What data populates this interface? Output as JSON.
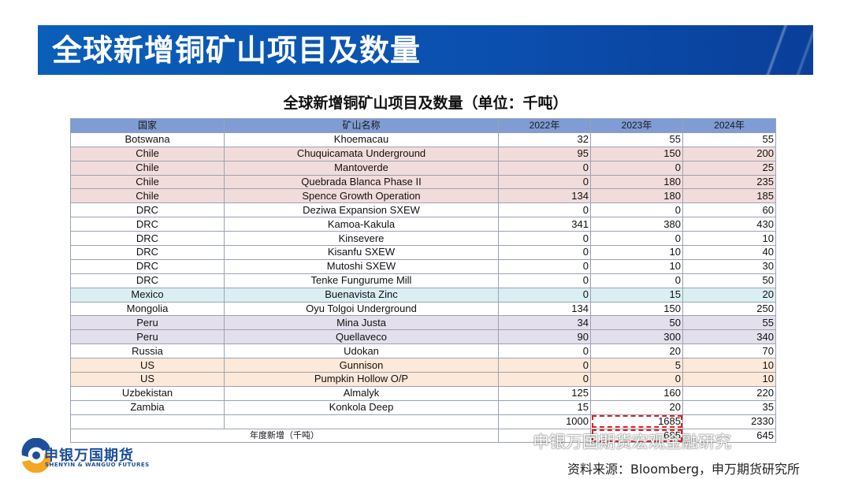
{
  "banner": {
    "title": "全球新增铜矿山项目及数量"
  },
  "table_title": "全球新增铜矿山项目及数量（单位：千吨）",
  "table": {
    "headers": [
      "国家",
      "矿山名称",
      "2022年",
      "2023年",
      "2024年"
    ],
    "rows": [
      {
        "country": "Botswana",
        "mine": "Khoemacau",
        "y2022": "32",
        "y2023": "55",
        "y2024": "55",
        "hl": ""
      },
      {
        "country": "Chile",
        "mine": "Chuquicamata Underground",
        "y2022": "95",
        "y2023": "150",
        "y2024": "200",
        "hl": "red"
      },
      {
        "country": "Chile",
        "mine": "Mantoverde",
        "y2022": "0",
        "y2023": "0",
        "y2024": "25",
        "hl": "red"
      },
      {
        "country": "Chile",
        "mine": "Quebrada Blanca Phase II",
        "y2022": "0",
        "y2023": "180",
        "y2024": "235",
        "hl": "red"
      },
      {
        "country": "Chile",
        "mine": "Spence Growth Operation",
        "y2022": "134",
        "y2023": "180",
        "y2024": "185",
        "hl": "red"
      },
      {
        "country": "DRC",
        "mine": "Deziwa Expansion SXEW",
        "y2022": "0",
        "y2023": "0",
        "y2024": "60",
        "hl": ""
      },
      {
        "country": "DRC",
        "mine": "Kamoa-Kakula",
        "y2022": "341",
        "y2023": "380",
        "y2024": "430",
        "hl": ""
      },
      {
        "country": "DRC",
        "mine": "Kinsevere",
        "y2022": "0",
        "y2023": "0",
        "y2024": "10",
        "hl": ""
      },
      {
        "country": "DRC",
        "mine": "Kisanfu SXEW",
        "y2022": "0",
        "y2023": "10",
        "y2024": "40",
        "hl": ""
      },
      {
        "country": "DRC",
        "mine": "Mutoshi SXEW",
        "y2022": "0",
        "y2023": "10",
        "y2024": "30",
        "hl": ""
      },
      {
        "country": "DRC",
        "mine": "Tenke Fungurume Mill",
        "y2022": "0",
        "y2023": "0",
        "y2024": "50",
        "hl": ""
      },
      {
        "country": "Mexico",
        "mine": "Buenavista Zinc",
        "y2022": "0",
        "y2023": "15",
        "y2024": "20",
        "hl": "blue"
      },
      {
        "country": "Mongolia",
        "mine": "Oyu Tolgoi Underground",
        "y2022": "134",
        "y2023": "150",
        "y2024": "250",
        "hl": ""
      },
      {
        "country": "Peru",
        "mine": "Mina Justa",
        "y2022": "34",
        "y2023": "50",
        "y2024": "55",
        "hl": "purple"
      },
      {
        "country": "Peru",
        "mine": "Quellaveco",
        "y2022": "90",
        "y2023": "300",
        "y2024": "340",
        "hl": "purple"
      },
      {
        "country": "Russia",
        "mine": "Udokan",
        "y2022": "0",
        "y2023": "20",
        "y2024": "70",
        "hl": ""
      },
      {
        "country": "US",
        "mine": "Gunnison",
        "y2022": "0",
        "y2023": "5",
        "y2024": "10",
        "hl": "orange"
      },
      {
        "country": "US",
        "mine": "Pumpkin Hollow O/P",
        "y2022": "0",
        "y2023": "0",
        "y2024": "10",
        "hl": "orange"
      },
      {
        "country": "Uzbekistan",
        "mine": "Almalyk",
        "y2022": "125",
        "y2023": "160",
        "y2024": "220",
        "hl": ""
      },
      {
        "country": "Zambia",
        "mine": "Konkola Deep",
        "y2022": "15",
        "y2023": "20",
        "y2024": "35",
        "hl": ""
      }
    ],
    "totals": {
      "y2022": "1000",
      "y2023": "1685",
      "y2024": "2330"
    },
    "annual_label": "年度新增（千吨）",
    "annual": {
      "y2022": "",
      "y2023": "685",
      "y2024": "645"
    }
  },
  "logo": {
    "cn": "申银万国期货",
    "en": "SHENYIN & WANGUO FUTURES",
    "color": "#1d4e9a"
  },
  "watermark": "申银万国期货宏观金融研究",
  "source": "资料来源：Bloomberg，申万期货研究所",
  "colors": {
    "banner": "#0b4fae",
    "header": "#7f9cd4",
    "chile": "#f2dcdb",
    "mexico": "#dbeef3",
    "peru": "#e4dfec",
    "us": "#fde9d9"
  }
}
